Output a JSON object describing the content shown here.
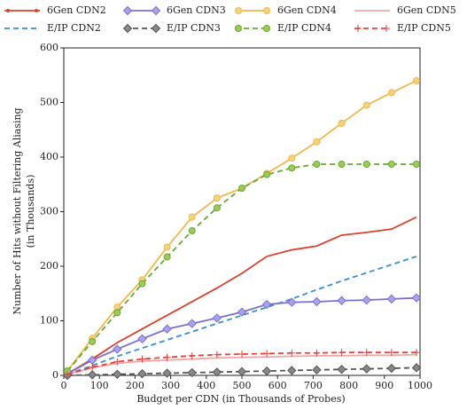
{
  "chart_data": {
    "type": "line",
    "xlabel": "Budget per CDN (in Thousands of Probes)",
    "ylabel_lines": [
      "Number of Hits without Filtering Aliasing",
      "(in Thousands)"
    ],
    "x": [
      10,
      80,
      150,
      220,
      290,
      360,
      430,
      500,
      570,
      640,
      710,
      780,
      850,
      920,
      990
    ],
    "xlim": [
      0,
      1000
    ],
    "xticks": [
      0,
      100,
      200,
      300,
      400,
      500,
      600,
      700,
      800,
      900,
      1000
    ],
    "ylim": [
      0,
      600
    ],
    "yticks": [
      0,
      100,
      200,
      300,
      400,
      500,
      600
    ],
    "legend_columns": 4,
    "series": [
      {
        "name": "6Gen CDN2",
        "color": "#d9432e",
        "dash": false,
        "marker": "dot",
        "values": [
          3,
          30,
          60,
          85,
          110,
          135,
          160,
          187,
          218,
          230,
          237,
          257,
          262,
          268,
          290
        ]
      },
      {
        "name": "E/IP CDN2",
        "color": "#3a8ec8",
        "dash": true,
        "marker": "none",
        "values": [
          2,
          18,
          35,
          50,
          65,
          80,
          95,
          110,
          125,
          140,
          157,
          173,
          188,
          203,
          218
        ]
      },
      {
        "name": "6Gen CDN3",
        "color": "#7b6fd0",
        "dash": false,
        "marker": "diamond",
        "fill": "#a9a3ee",
        "values": [
          3,
          28,
          48,
          67,
          85,
          95,
          105,
          116,
          130,
          134,
          135,
          137,
          138,
          140,
          142
        ]
      },
      {
        "name": "E/IP CDN3",
        "color": "#555555",
        "dash": true,
        "marker": "diamond",
        "fill": "#888888",
        "values": [
          0,
          1,
          2,
          3,
          4,
          5,
          6,
          7,
          8,
          9,
          10,
          11,
          12,
          13,
          14
        ]
      },
      {
        "name": "6Gen CDN4",
        "color": "#f2b84b",
        "dash": false,
        "marker": "circle",
        "fill": "#f8d27a",
        "values": [
          8,
          68,
          125,
          175,
          235,
          290,
          325,
          343,
          370,
          398,
          428,
          462,
          495,
          518,
          540
        ]
      },
      {
        "name": "E/IP CDN4",
        "color": "#6aa832",
        "dash": true,
        "marker": "circle",
        "fill": "#9ccc55",
        "values": [
          8,
          62,
          115,
          168,
          217,
          265,
          307,
          343,
          368,
          380,
          387,
          387,
          387,
          387,
          387
        ]
      },
      {
        "name": "6Gen CDN5",
        "color": "#f4a6a6",
        "dash": false,
        "marker": "none",
        "values": [
          2,
          14,
          22,
          26,
          28,
          30,
          32,
          33,
          34,
          35,
          36,
          36,
          37,
          37,
          38
        ]
      },
      {
        "name": "E/IP CDN5",
        "color": "#e8403a",
        "dash": true,
        "marker": "plus",
        "values": [
          2,
          15,
          25,
          30,
          33,
          36,
          38,
          39,
          40,
          41,
          41,
          42,
          42,
          42,
          42
        ]
      }
    ]
  }
}
